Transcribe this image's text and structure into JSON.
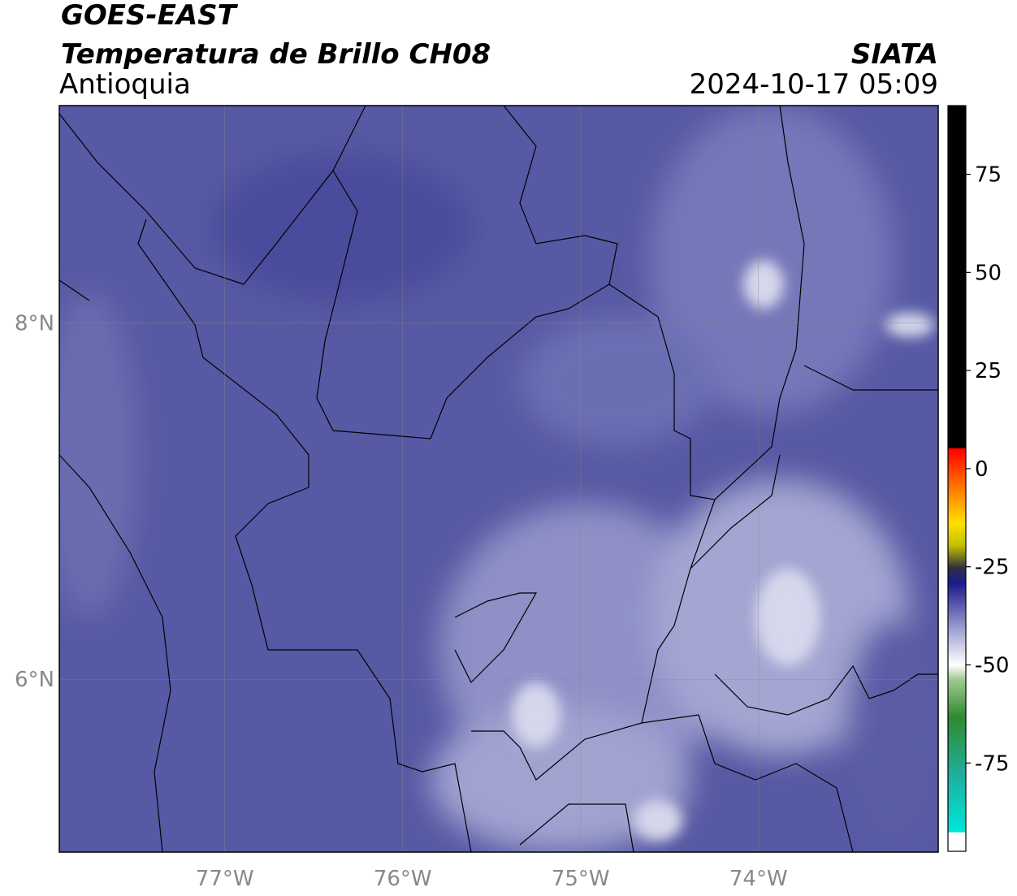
{
  "header": {
    "title": "GOES-EAST",
    "subtitle": "Temperatura de Brillo CH08",
    "region": "Antioquia",
    "organization": "SIATA",
    "datetime": "2024-10-17 05:09"
  },
  "map": {
    "xlim": [
      -77.93,
      -72.99
    ],
    "ylim": [
      5.03,
      9.22
    ],
    "xticks": [
      {
        "value": -77,
        "label": "77°W"
      },
      {
        "value": -76,
        "label": "76°W"
      },
      {
        "value": -75,
        "label": "75°W"
      },
      {
        "value": -74,
        "label": "74°W"
      }
    ],
    "yticks": [
      {
        "value": 6,
        "label": "6°N"
      },
      {
        "value": 8,
        "label": "8°N"
      }
    ],
    "grid": true
  },
  "colorbar": {
    "lim": [
      -97.5,
      92.5
    ],
    "ticks": [
      75,
      50,
      25,
      0,
      -25,
      -50,
      -75
    ]
  }
}
